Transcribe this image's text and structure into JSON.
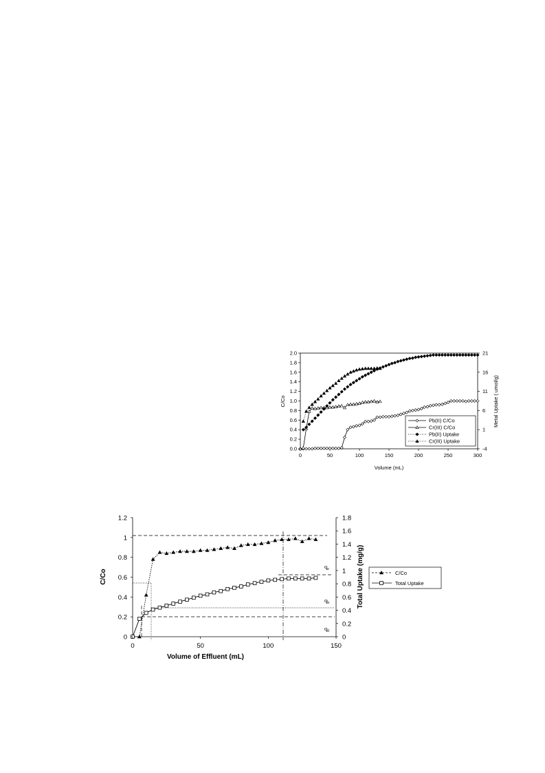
{
  "chart_data": [
    {
      "type": "line",
      "xlabel": "Volume (mL)",
      "ylabel": "C/Co",
      "y2label": "Metal Uptake ( umol/g)",
      "xlim": [
        0,
        300
      ],
      "ylim": [
        0,
        2.0
      ],
      "y2lim": [
        -4,
        21
      ],
      "x_ticks": [
        "0",
        "50",
        "100",
        "150",
        "200",
        "250",
        "300"
      ],
      "y_ticks": [
        "0.0",
        "0.2",
        "0.4",
        "0.6",
        "0.8",
        "1.0",
        "1.2",
        "1.4",
        "1.6",
        "1.8",
        "2.0"
      ],
      "y2_ticks": [
        "-4",
        "1",
        "6",
        "11",
        "16",
        "21"
      ],
      "grid": false,
      "legend_position": "bottom-right",
      "series": [
        {
          "name": "Pb(II) C/Co",
          "axis": "left",
          "marker": "diamond-open",
          "line": "solid",
          "x": [
            0,
            5,
            10,
            15,
            20,
            25,
            30,
            35,
            40,
            45,
            50,
            55,
            60,
            65,
            70,
            75,
            80,
            85,
            90,
            95,
            100,
            105,
            110,
            115,
            120,
            125,
            130,
            135,
            140,
            145,
            150,
            155,
            160,
            165,
            170,
            175,
            180,
            185,
            190,
            195,
            200,
            205,
            210,
            215,
            220,
            225,
            230,
            235,
            240,
            245,
            250,
            255,
            260,
            265,
            270,
            275,
            280,
            285,
            290,
            295,
            300
          ],
          "y": [
            0,
            0,
            0,
            0,
            0,
            0.01,
            0.01,
            0.01,
            0.01,
            0.01,
            0.01,
            0.01,
            0.01,
            0.01,
            0.02,
            0.24,
            0.4,
            0.45,
            0.46,
            0.48,
            0.49,
            0.52,
            0.57,
            0.57,
            0.58,
            0.6,
            0.66,
            0.66,
            0.67,
            0.67,
            0.67,
            0.68,
            0.69,
            0.7,
            0.72,
            0.74,
            0.76,
            0.79,
            0.8,
            0.81,
            0.82,
            0.84,
            0.87,
            0.88,
            0.9,
            0.91,
            0.92,
            0.92,
            0.93,
            0.95,
            0.97,
            1.0,
            1.0,
            1.0,
            1.0,
            1.0,
            0.99,
            1.0,
            1.0,
            1.0,
            1.0
          ]
        },
        {
          "name": "Cr(III) C/Co",
          "axis": "left",
          "marker": "triangle-open",
          "line": "solid",
          "x": [
            0,
            5,
            10,
            15,
            20,
            25,
            30,
            35,
            40,
            45,
            50,
            55,
            60,
            65,
            70,
            75,
            80,
            85,
            90,
            95,
            100,
            105,
            110,
            115,
            120,
            125,
            130,
            135
          ],
          "y": [
            0,
            0.02,
            0.42,
            0.78,
            0.85,
            0.84,
            0.85,
            0.86,
            0.86,
            0.86,
            0.87,
            0.87,
            0.88,
            0.89,
            0.9,
            0.86,
            0.92,
            0.93,
            0.93,
            0.94,
            0.95,
            0.97,
            0.98,
            0.98,
            0.99,
            1.0,
            0.98,
            0.99
          ]
        },
        {
          "name": "Pb(II) Uptake",
          "axis": "right",
          "marker": "diamond-filled",
          "line": "dotted",
          "x": [
            5,
            10,
            15,
            20,
            25,
            30,
            35,
            40,
            45,
            50,
            55,
            60,
            65,
            70,
            75,
            80,
            85,
            90,
            95,
            100,
            105,
            110,
            115,
            120,
            125,
            130,
            135,
            140,
            145,
            150,
            155,
            160,
            165,
            170,
            175,
            180,
            185,
            190,
            195,
            200,
            205,
            210,
            215,
            220,
            225,
            230,
            235,
            240,
            245,
            250,
            255,
            260,
            265,
            270,
            275,
            280,
            285,
            290,
            295,
            300
          ],
          "y": [
            1,
            1.6,
            2.4,
            3.2,
            4.0,
            4.8,
            5.6,
            6.4,
            7.2,
            8.0,
            8.8,
            9.5,
            10.2,
            10.9,
            11.6,
            12.2,
            12.8,
            13.3,
            13.8,
            14.3,
            14.8,
            15.2,
            15.6,
            16.0,
            16.4,
            16.8,
            17.1,
            17.4,
            17.7,
            18.0,
            18.3,
            18.5,
            18.8,
            19.0,
            19.2,
            19.4,
            19.6,
            19.7,
            19.9,
            20.0,
            20.1,
            20.2,
            20.3,
            20.4,
            20.5,
            20.5,
            20.5,
            20.5,
            20.5,
            20.5,
            20.5,
            20.5,
            20.5,
            20.5,
            20.5,
            20.5,
            20.5,
            20.5,
            20.5,
            20.5
          ]
        },
        {
          "name": "Cr(III) Uptake",
          "axis": "right",
          "marker": "triangle-filled",
          "line": "dotted",
          "x": [
            5,
            10,
            15,
            20,
            25,
            30,
            35,
            40,
            45,
            50,
            55,
            60,
            65,
            70,
            75,
            80,
            85,
            90,
            95,
            100,
            105,
            110,
            115,
            120,
            125,
            130,
            135
          ],
          "y": [
            3.2,
            5.8,
            6.8,
            7.6,
            8.3,
            9.0,
            9.8,
            10.5,
            11.2,
            11.9,
            12.5,
            13.1,
            13.8,
            14.4,
            15.0,
            15.5,
            16.0,
            16.3,
            16.6,
            16.8,
            16.9,
            17.0,
            17.0,
            17.0,
            17.0,
            17.1,
            17.0
          ]
        }
      ]
    },
    {
      "type": "line",
      "xlabel": "Volume of Effluent (mL)",
      "ylabel": "C/Co",
      "y2label": "Total Uptake (mg/g)",
      "xlim": [
        0,
        150
      ],
      "ylim": [
        0,
        1.2
      ],
      "y2lim": [
        0,
        1.8
      ],
      "x_ticks": [
        "0",
        "50",
        "100",
        "150"
      ],
      "y_ticks": [
        "0",
        "0.2",
        "0.4",
        "0.6",
        "0.8",
        "1",
        "1.2"
      ],
      "y2_ticks": [
        "0",
        "0.2",
        "0.4",
        "0.6",
        "0.8",
        "1",
        "1.2",
        "1.4",
        "1.6",
        "1.8"
      ],
      "grid": false,
      "legend_position": "right",
      "annotations": [
        "qe",
        "qb",
        "q0"
      ],
      "series": [
        {
          "name": "C/Co",
          "axis": "left",
          "marker": "triangle-filled",
          "line": "dashed",
          "x": [
            0,
            5,
            10,
            15,
            20,
            25,
            30,
            35,
            40,
            45,
            50,
            55,
            60,
            65,
            70,
            75,
            80,
            85,
            90,
            95,
            100,
            105,
            110,
            115,
            120,
            125,
            130,
            135
          ],
          "y": [
            0,
            0,
            0.42,
            0.78,
            0.85,
            0.84,
            0.85,
            0.86,
            0.86,
            0.86,
            0.87,
            0.87,
            0.88,
            0.89,
            0.9,
            0.89,
            0.92,
            0.93,
            0.93,
            0.94,
            0.95,
            0.97,
            0.98,
            0.98,
            0.99,
            0.96,
            0.99,
            0.98
          ]
        },
        {
          "name": "Total Uptake",
          "axis": "right",
          "marker": "square-open",
          "line": "solid",
          "x": [
            0,
            5,
            10,
            15,
            20,
            25,
            30,
            35,
            40,
            45,
            50,
            55,
            60,
            65,
            70,
            75,
            80,
            85,
            90,
            95,
            100,
            105,
            110,
            115,
            120,
            125,
            130,
            135
          ],
          "y": [
            0,
            0.27,
            0.36,
            0.41,
            0.44,
            0.47,
            0.5,
            0.53,
            0.56,
            0.59,
            0.62,
            0.64,
            0.67,
            0.69,
            0.72,
            0.74,
            0.76,
            0.79,
            0.81,
            0.83,
            0.85,
            0.86,
            0.87,
            0.88,
            0.88,
            0.88,
            0.88,
            0.89
          ]
        }
      ]
    }
  ]
}
